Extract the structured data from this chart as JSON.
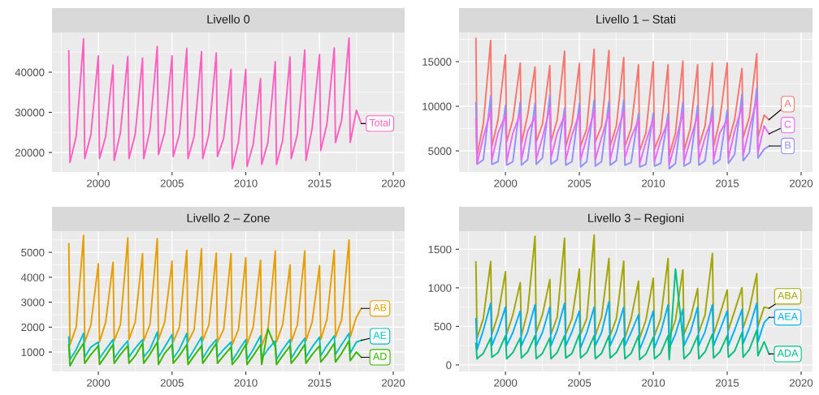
{
  "chart_data": [
    {
      "type": "line",
      "title": "Livello 0",
      "xlim": [
        1996.86,
        2020.77
      ],
      "xticks": [
        2000,
        2005,
        2010,
        2015,
        2020
      ],
      "ylim": [
        15150,
        49900
      ],
      "yticks": [
        20000,
        30000,
        40000
      ],
      "grid": true,
      "x": [
        1998,
        1998.08,
        1998.5,
        1999,
        1999.08,
        1999.5,
        2000,
        2000.08,
        2000.5,
        2001,
        2001.08,
        2001.5,
        2002,
        2002.08,
        2002.5,
        2003,
        2003.08,
        2003.5,
        2004,
        2004.08,
        2004.5,
        2005,
        2005.08,
        2005.5,
        2006,
        2006.08,
        2006.5,
        2007,
        2007.08,
        2007.5,
        2008,
        2008.08,
        2008.5,
        2009,
        2009.08,
        2009.5,
        2010,
        2010.08,
        2010.5,
        2011,
        2011.08,
        2011.5,
        2012,
        2012.08,
        2012.5,
        2013,
        2013.08,
        2013.5,
        2014,
        2014.08,
        2014.5,
        2015,
        2015.08,
        2015.5,
        2016,
        2016.08,
        2016.5,
        2017,
        2017.08,
        2017.5,
        2017.83
      ],
      "series": [
        {
          "name": "Total",
          "color": "#ff61c3",
          "values": [
            45270,
            17500,
            24000,
            48300,
            18500,
            24500,
            44050,
            18500,
            24000,
            41760,
            18000,
            25000,
            43900,
            18500,
            24500,
            43500,
            18500,
            25500,
            46400,
            19500,
            25000,
            44100,
            19000,
            24500,
            45900,
            18500,
            24000,
            45100,
            18500,
            24500,
            44800,
            19000,
            23500,
            40700,
            16000,
            22500,
            40700,
            16500,
            22000,
            38400,
            17000,
            22500,
            42600,
            17000,
            23000,
            43800,
            18500,
            24500,
            45500,
            18000,
            26000,
            44400,
            20500,
            27000,
            46000,
            22500,
            28000,
            48500,
            22500,
            30500,
            27200
          ]
        }
      ]
    },
    {
      "type": "line",
      "title": "Livello 1 – Stati",
      "xlim": [
        1996.86,
        2020.77
      ],
      "xticks": [
        2000,
        2005,
        2010,
        2015,
        2020
      ],
      "ylim": [
        2640,
        18270
      ],
      "yticks": [
        5000,
        10000,
        15000
      ],
      "grid": true,
      "x": [
        1998,
        1998.08,
        1998.5,
        1999,
        1999.08,
        1999.5,
        2000,
        2000.08,
        2000.5,
        2001,
        2001.08,
        2001.5,
        2002,
        2002.08,
        2002.5,
        2003,
        2003.08,
        2003.5,
        2004,
        2004.08,
        2004.5,
        2005,
        2005.08,
        2005.5,
        2006,
        2006.08,
        2006.5,
        2007,
        2007.08,
        2007.5,
        2008,
        2008.08,
        2008.5,
        2009,
        2009.08,
        2009.5,
        2010,
        2010.08,
        2010.5,
        2011,
        2011.08,
        2011.5,
        2012,
        2012.08,
        2012.5,
        2013,
        2013.08,
        2013.5,
        2014,
        2014.08,
        2014.5,
        2015,
        2015.08,
        2015.5,
        2016,
        2016.08,
        2016.5,
        2017,
        2017.08,
        2017.5,
        2017.83
      ],
      "series": [
        {
          "name": "A",
          "color": "#f8766d",
          "values": [
            17600,
            4500,
            8000,
            17360,
            5500,
            8500,
            15760,
            6000,
            8500,
            14850,
            5800,
            9000,
            14390,
            6000,
            8000,
            14550,
            6000,
            8500,
            16150,
            5500,
            8000,
            14790,
            5500,
            7500,
            16390,
            6000,
            7800,
            16240,
            5500,
            7800,
            15450,
            5500,
            7500,
            14640,
            5000,
            7000,
            14970,
            5200,
            7000,
            14640,
            4500,
            7000,
            15060,
            5000,
            7500,
            14640,
            5500,
            7800,
            14850,
            5500,
            8500,
            14850,
            6000,
            8500,
            14240,
            6500,
            8800,
            15880,
            6500,
            9000,
            8500
          ]
        },
        {
          "name": "B",
          "color": "#9590ff",
          "values": [
            10390,
            3500,
            4000,
            11150,
            3500,
            3800,
            10090,
            3400,
            3800,
            10480,
            3400,
            4000,
            10330,
            3500,
            4200,
            11240,
            3500,
            4000,
            9790,
            3400,
            3800,
            10330,
            3200,
            3800,
            10700,
            3300,
            3800,
            10550,
            3400,
            3900,
            10700,
            3400,
            3700,
            9180,
            3200,
            3500,
            9240,
            3300,
            3600,
            9180,
            3000,
            3600,
            10480,
            3300,
            3700,
            10090,
            3400,
            3900,
            9940,
            3500,
            4000,
            9550,
            3600,
            4600,
            11360,
            3900,
            4800,
            12060,
            4200,
            5200,
            5550
          ]
        },
        {
          "name": "C",
          "color": "#e76bf3",
          "values": [
            8580,
            3600,
            6500,
            9500,
            4000,
            7000,
            9000,
            3800,
            7000,
            9200,
            4000,
            7200,
            8800,
            4000,
            6500,
            9800,
            4200,
            7000,
            9000,
            4000,
            6800,
            9200,
            4000,
            6500,
            9500,
            4000,
            6500,
            9300,
            4000,
            6800,
            9400,
            4200,
            6500,
            8500,
            3600,
            6000,
            8600,
            3800,
            6200,
            8400,
            3500,
            6000,
            9300,
            3800,
            6200,
            9000,
            4000,
            6500,
            8800,
            4000,
            7000,
            8500,
            4200,
            7200,
            10000,
            4500,
            7500,
            10800,
            4800,
            7800,
            6900
          ]
        }
      ]
    },
    {
      "type": "line",
      "title": "Livello 2 – Zone",
      "xlim": [
        1996.86,
        2020.77
      ],
      "xticks": [
        2000,
        2005,
        2010,
        2015,
        2020
      ],
      "ylim": [
        220,
        5850
      ],
      "yticks": [
        1000,
        2000,
        3000,
        4000,
        5000
      ],
      "grid": true,
      "x": [
        1998,
        1998.08,
        1998.5,
        1999,
        1999.08,
        1999.5,
        2000,
        2000.08,
        2000.5,
        2001,
        2001.08,
        2001.5,
        2002,
        2002.08,
        2002.5,
        2003,
        2003.08,
        2003.5,
        2004,
        2004.08,
        2004.5,
        2005,
        2005.08,
        2005.5,
        2006,
        2006.08,
        2006.5,
        2007,
        2007.08,
        2007.5,
        2008,
        2008.08,
        2008.5,
        2009,
        2009.08,
        2009.5,
        2010,
        2010.08,
        2010.5,
        2011,
        2011.08,
        2011.5,
        2012,
        2012.08,
        2012.5,
        2013,
        2013.08,
        2013.5,
        2014,
        2014.08,
        2014.5,
        2015,
        2015.08,
        2015.5,
        2016,
        2016.08,
        2016.5,
        2017,
        2017.08,
        2017.5,
        2017.83
      ],
      "series": [
        {
          "name": "AB",
          "color": "#e69f00",
          "values": [
            5350,
            1300,
            2000,
            5680,
            1400,
            2100,
            4540,
            1400,
            2200,
            4600,
            1450,
            2100,
            5580,
            1500,
            2200,
            4950,
            1450,
            2100,
            5550,
            1500,
            2200,
            4650,
            1400,
            2000,
            5080,
            1400,
            1900,
            5140,
            1450,
            2100,
            4970,
            1400,
            1900,
            4950,
            1300,
            1900,
            4780,
            1300,
            2000,
            4680,
            1250,
            1900,
            5050,
            1400,
            2100,
            4490,
            1400,
            2100,
            5050,
            1450,
            2200,
            4460,
            1500,
            2300,
            5090,
            1600,
            2300,
            5490,
            1600,
            2400,
            2750
          ]
        },
        {
          "name": "AE",
          "color": "#00bfc4",
          "values": [
            1600,
            700,
            1100,
            1750,
            800,
            1200,
            1400,
            750,
            1100,
            1500,
            750,
            1100,
            1450,
            800,
            1150,
            1500,
            800,
            1100,
            1800,
            800,
            1200,
            1700,
            750,
            1100,
            1750,
            700,
            1100,
            1600,
            750,
            1150,
            1500,
            800,
            1100,
            1400,
            650,
            1050,
            1500,
            700,
            1100,
            1650,
            750,
            1100,
            1450,
            700,
            1100,
            1500,
            750,
            1150,
            1550,
            800,
            1200,
            1600,
            850,
            1250,
            1650,
            900,
            1300,
            1750,
            950,
            1400,
            1470
          ]
        },
        {
          "name": "AD",
          "color": "#39b600",
          "values": [
            1300,
            450,
            900,
            1350,
            550,
            900,
            1250,
            500,
            850,
            1300,
            550,
            900,
            1250,
            550,
            850,
            1350,
            550,
            900,
            1400,
            500,
            950,
            1300,
            550,
            850,
            1300,
            500,
            850,
            1250,
            550,
            900,
            1350,
            550,
            850,
            1200,
            500,
            800,
            1300,
            500,
            850,
            1300,
            500,
            1930,
            1200,
            500,
            850,
            1250,
            550,
            850,
            1300,
            550,
            900,
            1250,
            600,
            900,
            1350,
            600,
            950,
            1450,
            650,
            1000,
            790
          ]
        }
      ]
    },
    {
      "type": "line",
      "title": "Livello 3 – Regioni",
      "xlim": [
        1996.86,
        2020.77
      ],
      "xticks": [
        2000,
        2005,
        2010,
        2015,
        2020
      ],
      "ylim": [
        -85,
        1735
      ],
      "yticks": [
        0,
        500,
        1000,
        1500
      ],
      "grid": true,
      "x": [
        1998,
        1998.08,
        1998.5,
        1999,
        1999.08,
        1999.5,
        2000,
        2000.08,
        2000.5,
        2001,
        2001.08,
        2001.5,
        2002,
        2002.08,
        2002.5,
        2003,
        2003.08,
        2003.5,
        2004,
        2004.08,
        2004.5,
        2005,
        2005.08,
        2005.5,
        2006,
        2006.08,
        2006.5,
        2007,
        2007.08,
        2007.5,
        2008,
        2008.08,
        2008.5,
        2009,
        2009.08,
        2009.5,
        2010,
        2010.08,
        2010.5,
        2011,
        2011.08,
        2011.5,
        2012,
        2012.08,
        2012.5,
        2013,
        2013.08,
        2013.5,
        2014,
        2014.08,
        2014.5,
        2015,
        2015.08,
        2015.5,
        2016,
        2016.08,
        2016.5,
        2017,
        2017.08,
        2017.5,
        2017.83
      ],
      "series": [
        {
          "name": "ABA",
          "color": "#a3a500",
          "values": [
            1336,
            350,
            600,
            1340,
            400,
            650,
            1210,
            400,
            650,
            1068,
            380,
            700,
            1668,
            420,
            650,
            1108,
            400,
            620,
            1644,
            400,
            600,
            1244,
            400,
            600,
            1685,
            380,
            620,
            1380,
            380,
            600,
            1346,
            350,
            600,
            1085,
            350,
            580,
            1125,
            380,
            600,
            1380,
            350,
            580,
            1234,
            400,
            600,
            990,
            420,
            650,
            1447,
            400,
            650,
            973,
            450,
            700,
            1000,
            480,
            720,
            1183,
            500,
            750,
            735
          ]
        },
        {
          "name": "AEA",
          "color": "#00b0f6",
          "values": [
            600,
            200,
            450,
            800,
            250,
            450,
            750,
            250,
            420,
            700,
            250,
            430,
            780,
            250,
            420,
            750,
            250,
            450,
            800,
            250,
            430,
            700,
            220,
            420,
            750,
            250,
            420,
            820,
            250,
            430,
            750,
            250,
            420,
            650,
            200,
            400,
            700,
            220,
            420,
            780,
            220,
            400,
            720,
            250,
            420,
            750,
            250,
            430,
            780,
            250,
            450,
            700,
            250,
            450,
            720,
            280,
            480,
            800,
            300,
            550,
            617
          ]
        },
        {
          "name": "ADA",
          "color": "#00bf7d",
          "values": [
            280,
            80,
            150,
            350,
            100,
            160,
            380,
            80,
            160,
            350,
            90,
            170,
            380,
            80,
            150,
            350,
            80,
            160,
            380,
            90,
            150,
            400,
            90,
            160,
            380,
            80,
            150,
            380,
            90,
            160,
            350,
            80,
            150,
            380,
            70,
            140,
            360,
            80,
            150,
            380,
            70,
            1244,
            350,
            80,
            160,
            380,
            80,
            170,
            400,
            90,
            170,
            380,
            100,
            180,
            420,
            100,
            200,
            450,
            120,
            300,
            142
          ]
        }
      ]
    }
  ]
}
